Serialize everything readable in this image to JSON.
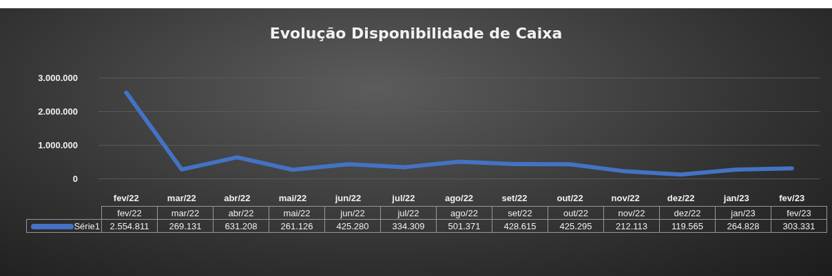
{
  "chart_data": {
    "type": "line",
    "title": "Evolução Disponibilidade de Caixa",
    "categories": [
      "fev/22",
      "mar/22",
      "abr/22",
      "mai/22",
      "jun/22",
      "jul/22",
      "ago/22",
      "set/22",
      "out/22",
      "nov/22",
      "dez/22",
      "jan/23",
      "fev/23"
    ],
    "series": [
      {
        "name": "Série1",
        "color": "#4472c4",
        "values": [
          2554811,
          269131,
          631208,
          261126,
          425280,
          334309,
          501371,
          428615,
          425295,
          212113,
          119565,
          264828,
          303331
        ],
        "value_labels": [
          "2.554.811",
          "269.131",
          "631.208",
          "261.126",
          "425.280",
          "334.309",
          "501.371",
          "428.615",
          "425.295",
          "212.113",
          "119.565",
          "264.828",
          "303.331"
        ]
      }
    ],
    "ylim": [
      0,
      3000000
    ],
    "yticks": [
      0,
      {
        "value": 1000000,
        "label": "1.000.000"
      },
      {
        "value": 2000000,
        "label": "2.000.000"
      },
      {
        "value": 3000000,
        "label": "3.000.000"
      }
    ],
    "grid": "y",
    "marker": "none",
    "line_style": "solid"
  }
}
